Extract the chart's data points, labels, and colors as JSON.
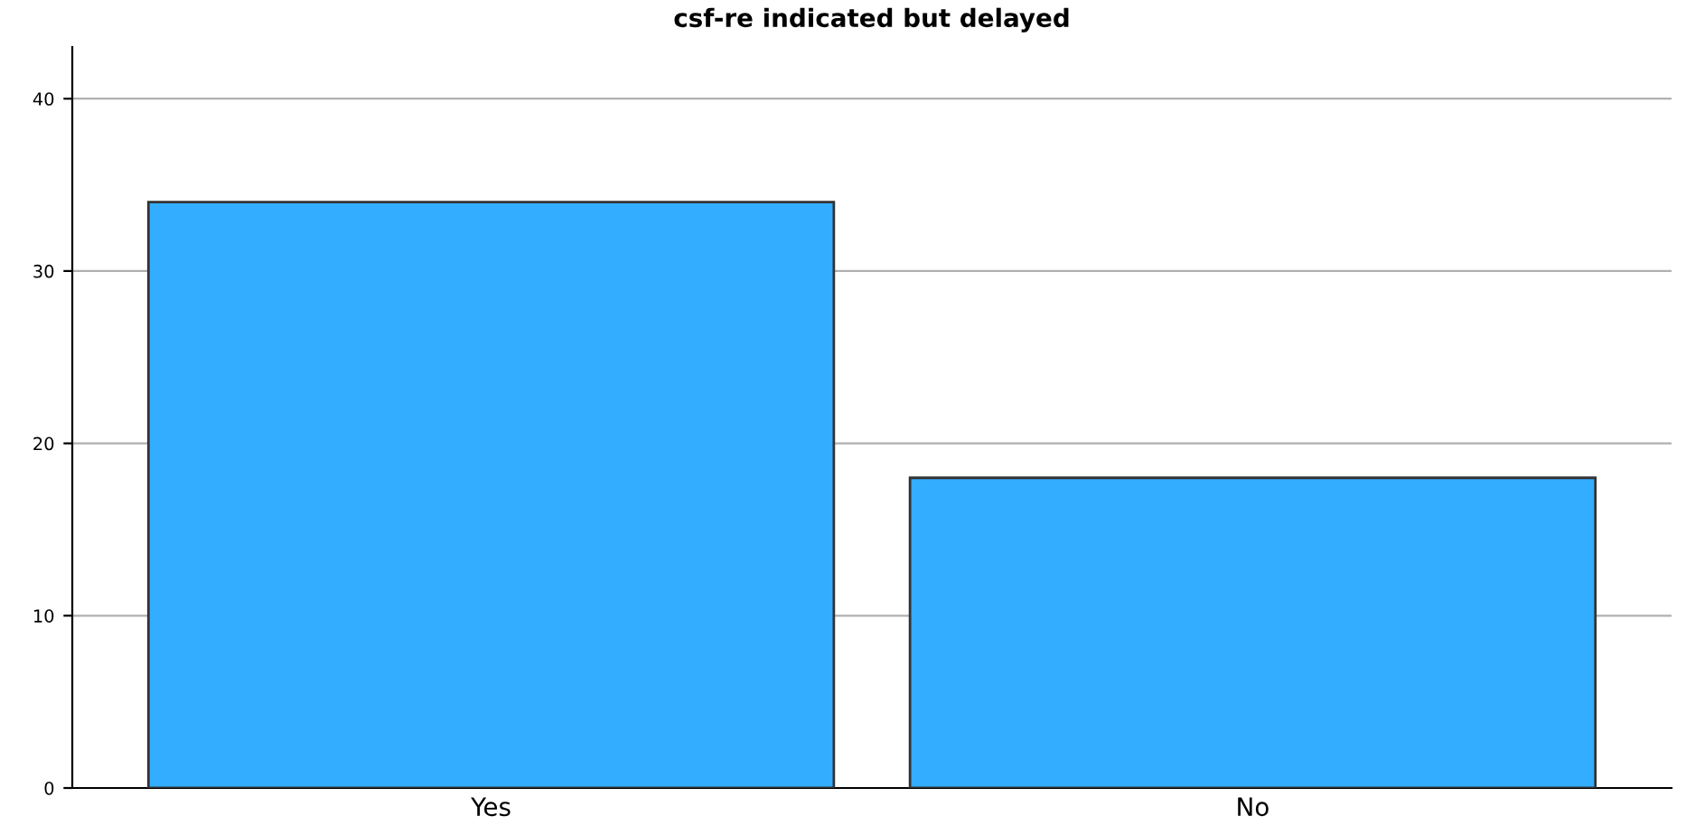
{
  "chart_data": {
    "type": "bar",
    "title": "csf-re indicated but delayed",
    "categories": [
      "Yes",
      "No"
    ],
    "values": [
      34,
      18
    ],
    "color": "#33adff",
    "ylim": [
      0,
      43
    ],
    "yticks": [
      0,
      10,
      20,
      30,
      40
    ],
    "grid": "y"
  }
}
